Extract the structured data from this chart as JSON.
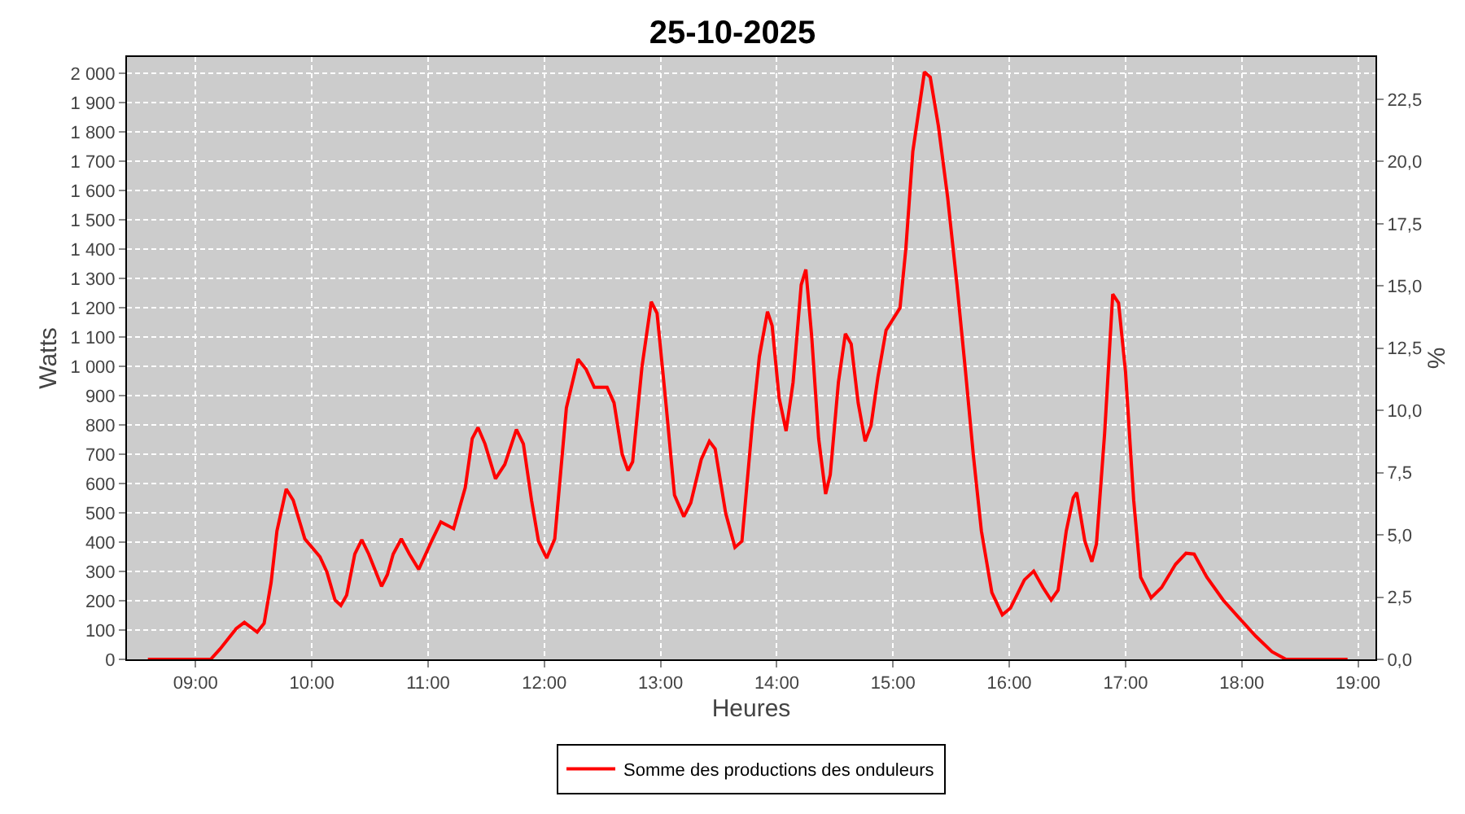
{
  "chart_data": {
    "type": "line",
    "title": "25-10-2025",
    "xlabel": "Heures",
    "ylabel": "Watts",
    "y2label": "%",
    "x": [
      8.59,
      9.13,
      9.21,
      9.35,
      9.42,
      9.53,
      9.59,
      9.65,
      9.7,
      9.78,
      9.84,
      9.94,
      10.07,
      10.13,
      10.2,
      10.25,
      10.3,
      10.37,
      10.43,
      10.49,
      10.6,
      10.65,
      10.7,
      10.77,
      10.84,
      10.92,
      11.03,
      11.11,
      11.22,
      11.32,
      11.38,
      11.43,
      11.49,
      11.58,
      11.66,
      11.76,
      11.82,
      11.89,
      11.95,
      12.02,
      12.09,
      12.19,
      12.29,
      12.36,
      12.43,
      12.54,
      12.6,
      12.67,
      12.72,
      12.76,
      12.84,
      12.92,
      12.97,
      13.05,
      13.12,
      13.2,
      13.26,
      13.35,
      13.42,
      13.47,
      13.56,
      13.64,
      13.7,
      13.79,
      13.85,
      13.92,
      13.96,
      14.02,
      14.08,
      14.14,
      14.21,
      14.25,
      14.3,
      14.36,
      14.42,
      14.46,
      14.53,
      14.59,
      14.64,
      14.7,
      14.76,
      14.81,
      14.87,
      14.94,
      15.06,
      15.11,
      15.17,
      15.27,
      15.32,
      15.39,
      15.47,
      15.55,
      15.62,
      15.69,
      15.76,
      15.85,
      15.94,
      16.01,
      16.13,
      16.21,
      16.29,
      16.36,
      16.42,
      16.49,
      16.55,
      16.58,
      16.65,
      16.71,
      16.75,
      16.82,
      16.89,
      16.94,
      17.0,
      17.07,
      17.13,
      17.22,
      17.31,
      17.43,
      17.52,
      17.59,
      17.7,
      17.84,
      17.98,
      18.12,
      18.26,
      18.38,
      18.91
    ],
    "series": [
      {
        "name": "Somme des productions des onduleurs",
        "color": "#ff0000",
        "values": [
          0,
          0,
          35,
          105,
          126,
          93,
          123,
          262,
          438,
          581,
          543,
          411,
          350,
          298,
          202,
          184,
          219,
          359,
          408,
          359,
          249,
          289,
          359,
          411,
          359,
          307,
          403,
          469,
          446,
          586,
          753,
          791,
          735,
          616,
          665,
          784,
          735,
          543,
          403,
          345,
          411,
          858,
          1024,
          989,
          928,
          928,
          875,
          700,
          644,
          674,
          997,
          1220,
          1181,
          858,
          560,
          487,
          534,
          682,
          744,
          718,
          499,
          382,
          403,
          805,
          1033,
          1186,
          1138,
          892,
          779,
          945,
          1278,
          1330,
          1102,
          753,
          564,
          630,
          945,
          1111,
          1076,
          875,
          744,
          796,
          963,
          1123,
          1199,
          1400,
          1732,
          2004,
          1986,
          1820,
          1575,
          1278,
          997,
          700,
          438,
          228,
          152,
          175,
          271,
          301,
          245,
          202,
          236,
          438,
          551,
          569,
          403,
          333,
          394,
          770,
          1246,
          1216,
          980,
          543,
          280,
          210,
          245,
          324,
          362,
          359,
          280,
          202,
          140,
          79,
          26,
          0,
          0
        ]
      }
    ],
    "xlim": [
      8.41,
      19.15
    ],
    "xticks": [
      {
        "value": 9,
        "label": "09:00"
      },
      {
        "value": 10,
        "label": "10:00"
      },
      {
        "value": 11,
        "label": "11:00"
      },
      {
        "value": 12,
        "label": "12:00"
      },
      {
        "value": 13,
        "label": "13:00"
      },
      {
        "value": 14,
        "label": "14:00"
      },
      {
        "value": 15,
        "label": "15:00"
      },
      {
        "value": 16,
        "label": "16:00"
      },
      {
        "value": 17,
        "label": "17:00"
      },
      {
        "value": 18,
        "label": "18:00"
      },
      {
        "value": 19,
        "label": "19:00"
      }
    ],
    "ylim": [
      0,
      2055
    ],
    "yticks": [
      0,
      100,
      200,
      300,
      400,
      500,
      600,
      700,
      800,
      900,
      {
        "value": 1000,
        "label": "1 000"
      },
      {
        "value": 1100,
        "label": "1 100"
      },
      {
        "value": 1200,
        "label": "1 200"
      },
      {
        "value": 1300,
        "label": "1 300"
      },
      {
        "value": 1400,
        "label": "1 400"
      },
      {
        "value": 1500,
        "label": "1 500"
      },
      {
        "value": 1600,
        "label": "1 600"
      },
      {
        "value": 1700,
        "label": "1 700"
      },
      {
        "value": 1800,
        "label": "1 800"
      },
      {
        "value": 1900,
        "label": "1 900"
      },
      {
        "value": 2000,
        "label": "2 000"
      }
    ],
    "y2lim": [
      0,
      24.2
    ],
    "y2ticks": [
      {
        "value": 0,
        "label": "0,0"
      },
      {
        "value": 2.5,
        "label": "2,5"
      },
      {
        "value": 5,
        "label": "5,0"
      },
      {
        "value": 7.5,
        "label": "7,5"
      },
      {
        "value": 10,
        "label": "10,0"
      },
      {
        "value": 12.5,
        "label": "12,5"
      },
      {
        "value": 15,
        "label": "15,0"
      },
      {
        "value": 17.5,
        "label": "17,5"
      },
      {
        "value": 20,
        "label": "20,0"
      },
      {
        "value": 22.5,
        "label": "22,5"
      }
    ],
    "grid": true,
    "legend": "bottom",
    "marker": "none",
    "line_style": "solid"
  }
}
